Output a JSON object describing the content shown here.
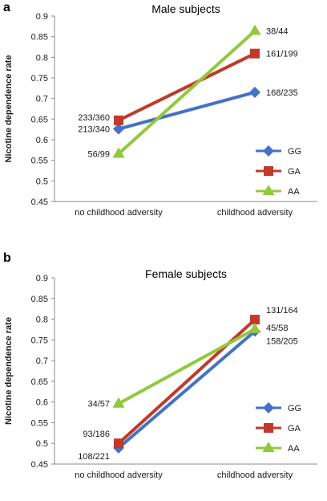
{
  "chart_data": [
    {
      "panel_label": "a",
      "type": "line",
      "title": "Male subjects",
      "xlabel": "",
      "ylabel": "Nicotine dependence rate",
      "categories": [
        "no childhood adversity",
        "childhood adversity"
      ],
      "ylim": [
        0.45,
        0.9
      ],
      "yticks": [
        "0.45",
        "0.5",
        "0.55",
        "0.6",
        "0.65",
        "0.7",
        "0.75",
        "0.8",
        "0.85",
        "0.9"
      ],
      "grid": false,
      "legend_position": "bottom-right",
      "series": [
        {
          "name": "GG",
          "values": [
            0.626,
            0.715
          ],
          "labels": [
            "213/340",
            "168/235"
          ],
          "color": "#4472C4",
          "marker": "diamond"
        },
        {
          "name": "GA",
          "values": [
            0.647,
            0.809
          ],
          "labels": [
            "233/360",
            "161/199"
          ],
          "color": "#C0392B",
          "marker": "square"
        },
        {
          "name": "AA",
          "values": [
            0.566,
            0.864
          ],
          "labels": [
            "56/99",
            "38/44"
          ],
          "color": "#92C83E",
          "marker": "triangle"
        }
      ]
    },
    {
      "panel_label": "b",
      "type": "line",
      "title": "Female subjects",
      "xlabel": "",
      "ylabel": "Nicotine dependence rate",
      "categories": [
        "no childhood adversity",
        "childhood adversity"
      ],
      "ylim": [
        0.45,
        0.9
      ],
      "yticks": [
        "0.45",
        "0.5",
        "0.55",
        "0.6",
        "0.65",
        "0.7",
        "0.75",
        "0.8",
        "0.85",
        "0.9"
      ],
      "grid": false,
      "legend_position": "bottom-right",
      "series": [
        {
          "name": "GG",
          "values": [
            0.489,
            0.771
          ],
          "labels": [
            "108/221",
            "158/205"
          ],
          "color": "#4472C4",
          "marker": "diamond"
        },
        {
          "name": "GA",
          "values": [
            0.5,
            0.799
          ],
          "labels": [
            "93/186",
            "131/164"
          ],
          "color": "#C0392B",
          "marker": "square"
        },
        {
          "name": "AA",
          "values": [
            0.596,
            0.776
          ],
          "labels": [
            "34/57",
            "45/58"
          ],
          "color": "#92C83E",
          "marker": "triangle"
        }
      ]
    }
  ]
}
